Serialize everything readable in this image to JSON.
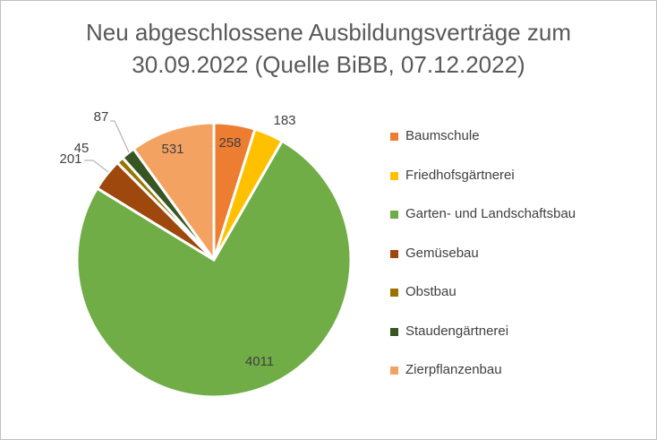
{
  "chart_data": {
    "type": "pie",
    "title_lines": [
      "Neu abgeschlossene Ausbildungsverträge zum",
      "30.09.2022 (Quelle BiBB, 07.12.2022)"
    ],
    "categories": [
      "Baumschule",
      "Friedhofsgärtnerei",
      "Garten- und Landschaftsbau",
      "Gemüsebau",
      "Obstbau",
      "Staudengärtnerei",
      "Zierpflanzenbau"
    ],
    "values": [
      258,
      183,
      4011,
      201,
      45,
      87,
      531
    ],
    "colors": [
      "#ed7d31",
      "#ffc000",
      "#70ad47",
      "#9e480e",
      "#997300",
      "#375623",
      "#f4a261"
    ],
    "legend_position": "right",
    "data_labels": true
  }
}
